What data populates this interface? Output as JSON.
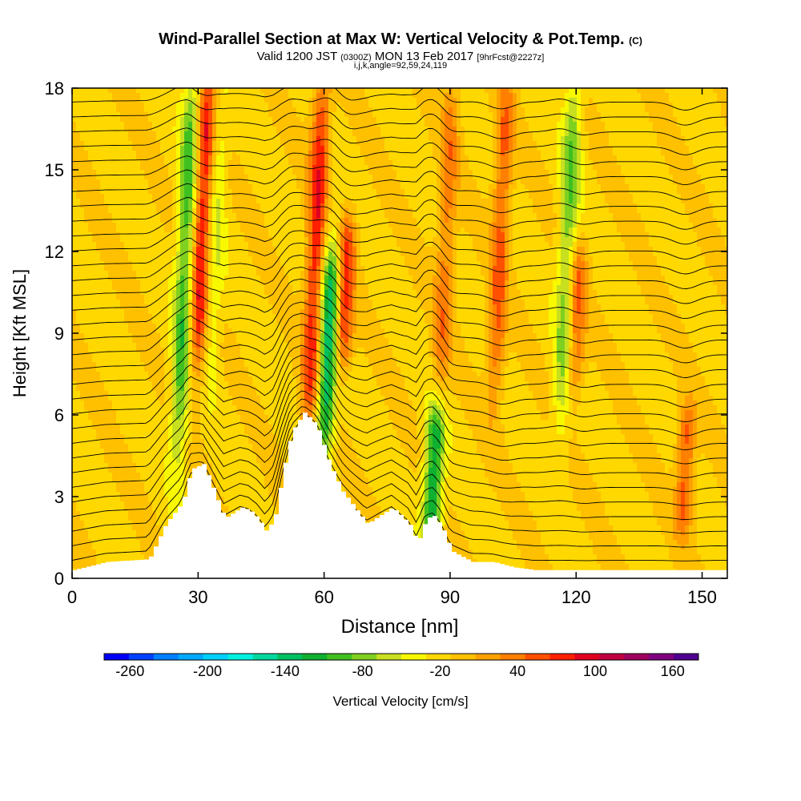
{
  "header": {
    "title": "Wind-Parallel Section at Max W: Vertical Velocity & Pot.Temp.",
    "copyright": "(C)",
    "valid_prefix": "Valid 1200 JST",
    "valid_utc": "(0300Z)",
    "valid_date": "MON 13 Feb 2017",
    "forecast": "[9hrFcst@2227z]",
    "subtitle": "i,j,k,angle=92,59,24,119"
  },
  "colorbar": {
    "label": "Vertical Velocity [cm/s]",
    "tick_labels": [
      "-260",
      "-200",
      "-140",
      "-80",
      "-20",
      "40",
      "100",
      "160"
    ],
    "tick_values": [
      -260,
      -200,
      -140,
      -80,
      -20,
      40,
      100,
      160
    ],
    "levels": [
      -260,
      -240,
      -220,
      -200,
      -180,
      -160,
      -140,
      -120,
      -100,
      -80,
      -60,
      -40,
      -20,
      0,
      20,
      40,
      60,
      80,
      100,
      120,
      140,
      160,
      180
    ],
    "colors": [
      "#0000ff",
      "#0040ff",
      "#0080ff",
      "#00a8ff",
      "#00d0ff",
      "#00f0e0",
      "#00d8a0",
      "#00c060",
      "#10b030",
      "#40c020",
      "#80d020",
      "#c8e020",
      "#f8f800",
      "#ffd800",
      "#ffc000",
      "#ffa000",
      "#ff8000",
      "#ff5000",
      "#ff2000",
      "#e00020",
      "#c00040",
      "#a00060",
      "#800080",
      "#500090"
    ]
  },
  "chart_data": {
    "type": "heatmap",
    "title": "Wind-Parallel Section at Max W: Vertical Velocity & Pot.Temp.",
    "xlabel": "Distance [nm]",
    "ylabel": "Height [Kft MSL]",
    "xlim": [
      0,
      156
    ],
    "ylim": [
      0,
      18
    ],
    "x_ticks": [
      0,
      30,
      60,
      90,
      120,
      150
    ],
    "y_ticks": [
      0,
      3,
      6,
      9,
      12,
      15,
      18
    ],
    "x_tick_labels": [
      "0",
      "30",
      "60",
      "90",
      "120",
      "150"
    ],
    "y_tick_labels": [
      "0",
      "3",
      "6",
      "9",
      "12",
      "15",
      "18"
    ],
    "grid": false,
    "terrain_kft": {
      "x": [
        0,
        8,
        18,
        22,
        26,
        28,
        31,
        34,
        36,
        38,
        40,
        42,
        44,
        46,
        48,
        50,
        52,
        55,
        58,
        61,
        64,
        67,
        70,
        73,
        76,
        80,
        82,
        84,
        86,
        88,
        90,
        95,
        100,
        105,
        110,
        115,
        120,
        125,
        130,
        135,
        140,
        145,
        150,
        156
      ],
      "y": [
        0.3,
        0.6,
        0.7,
        2.0,
        2.8,
        4.0,
        4.2,
        3.0,
        2.2,
        2.4,
        2.6,
        2.5,
        2.2,
        1.7,
        2.3,
        4.0,
        5.4,
        6.1,
        5.6,
        4.2,
        3.2,
        2.6,
        2.0,
        2.3,
        2.6,
        2.0,
        1.3,
        2.2,
        2.3,
        1.8,
        1.0,
        0.6,
        0.6,
        0.4,
        0.3,
        0.3,
        0.3,
        0.3,
        0.3,
        0.3,
        0.3,
        0.3,
        0.3,
        0.3
      ]
    },
    "vertical_velocity_cm_s": {
      "background": -5,
      "features": [
        {
          "x": 31,
          "y_range": [
            8,
            18
          ],
          "value": 110
        },
        {
          "x": 27,
          "y_range": [
            5,
            18
          ],
          "value": -90
        },
        {
          "x": 34,
          "y_range": [
            8,
            17
          ],
          "value": -40
        },
        {
          "x": 58,
          "y_range": [
            6,
            18
          ],
          "value": 100
        },
        {
          "x": 61,
          "y_range": [
            5,
            12
          ],
          "value": -130
        },
        {
          "x": 65,
          "y_range": [
            8,
            13
          ],
          "value": 90
        },
        {
          "x": 86,
          "y_range": [
            1.5,
            6
          ],
          "value": -120
        },
        {
          "x": 89,
          "y_range": [
            7,
            18
          ],
          "value": 55
        },
        {
          "x": 102,
          "y_range": [
            7,
            18
          ],
          "value": 70
        },
        {
          "x": 118,
          "y_range": [
            6,
            18
          ],
          "value": -70
        },
        {
          "x": 120,
          "y_range": [
            7,
            12
          ],
          "value": 70
        },
        {
          "x": 146,
          "y_range": [
            2,
            6
          ],
          "value": 75
        }
      ]
    },
    "potential_temperature_contours": {
      "spacing_kft": 0.55,
      "count": 32
    }
  }
}
